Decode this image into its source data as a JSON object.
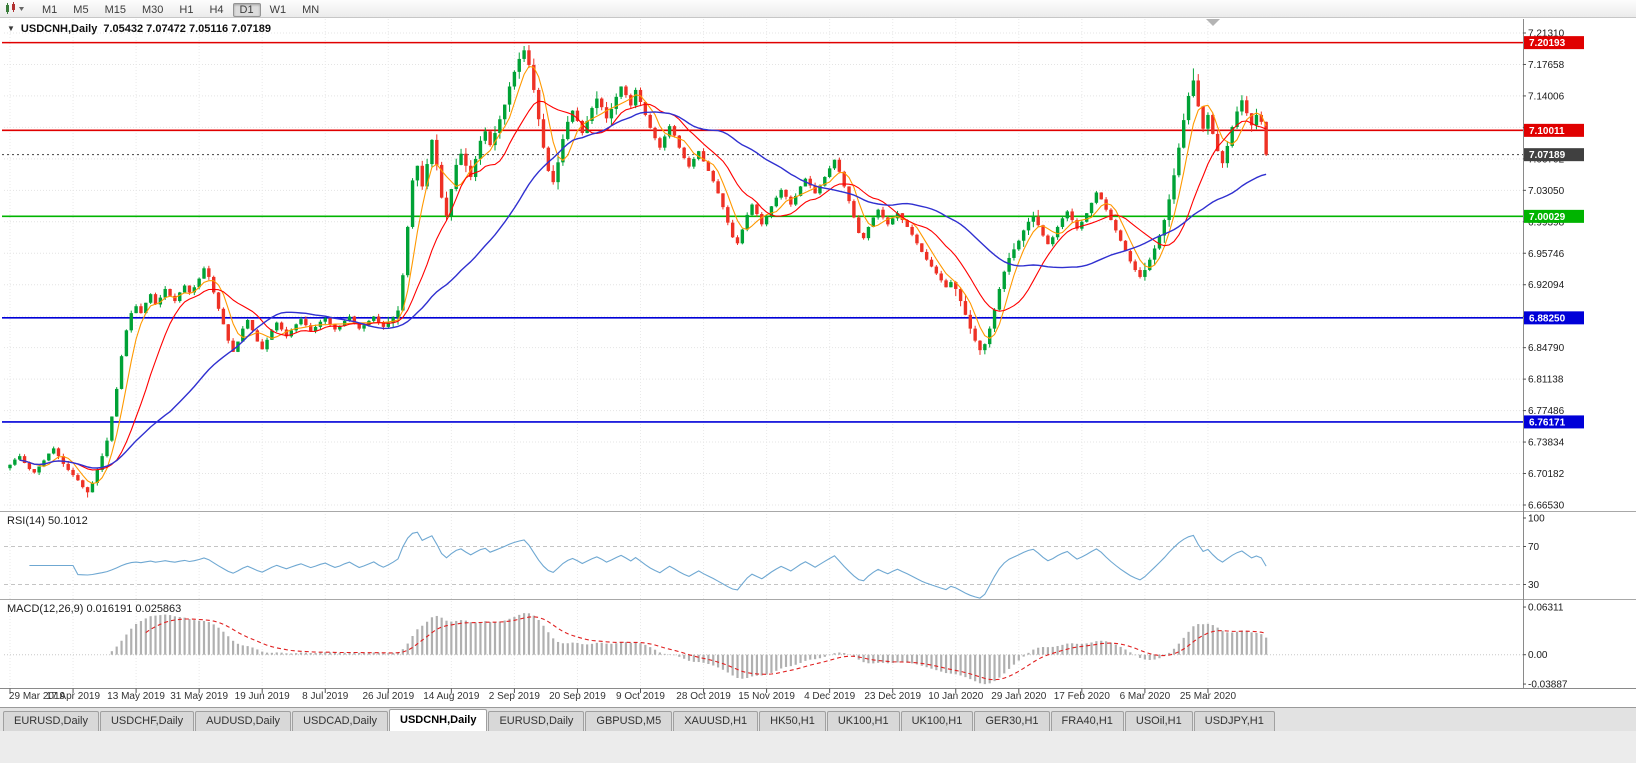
{
  "toolbar": {
    "periods": [
      "M1",
      "M5",
      "M15",
      "M30",
      "H1",
      "H4",
      "D1",
      "W1",
      "MN"
    ],
    "active_period": "D1"
  },
  "header": {
    "title": "USDCNH,Daily",
    "ohlc": "7.05432 7.07472 7.05116 7.07189"
  },
  "chart_data": {
    "type": "candlestick",
    "symbol": "USDCNH",
    "timeframe": "Daily",
    "current_bar": {
      "open": 7.05432,
      "high": 7.07472,
      "low": 7.05116,
      "close": 7.07189
    },
    "x_labels": [
      "29 Mar 2019",
      "17 Apr 2019",
      "13 May 2019",
      "31 May 2019",
      "19 Jun 2019",
      "8 Jul 2019",
      "26 Jul 2019",
      "14 Aug 2019",
      "2 Sep 2019",
      "20 Sep 2019",
      "9 Oct 2019",
      "28 Oct 2019",
      "15 Nov 2019",
      "4 Dec 2019",
      "23 Dec 2019",
      "10 Jan 2020",
      "29 Jan 2020",
      "17 Feb 2020",
      "6 Mar 2020",
      "25 Mar 2020"
    ],
    "bars_per_label": 13,
    "y_axis_ticks": [
      "7.21310",
      "7.17658",
      "7.14006",
      "7.10354",
      "7.06702",
      "7.03050",
      "6.99398",
      "6.95746",
      "6.92094",
      "6.88442",
      "6.84790",
      "6.81138",
      "6.77486",
      "6.73834",
      "6.70182",
      "6.66530"
    ],
    "horizontal_lines": [
      {
        "price": 7.20193,
        "label": "7.20193",
        "color": "#e00000",
        "style": "solid"
      },
      {
        "price": 7.10011,
        "label": "7.10011",
        "color": "#e00000",
        "style": "solid"
      },
      {
        "price": 7.07189,
        "label": "7.07189",
        "color": "#404040",
        "style": "dotted"
      },
      {
        "price": 7.00029,
        "label": "7.00029",
        "color": "#00b400",
        "style": "solid"
      },
      {
        "price": 6.8825,
        "label": "6.88250",
        "color": "#0000d8",
        "style": "solid"
      },
      {
        "price": 6.76171,
        "label": "6.76171",
        "color": "#0000d8",
        "style": "solid"
      }
    ],
    "candle_colors": {
      "up": "#00a236",
      "down": "#ee3125"
    },
    "moving_averages": [
      {
        "name": "fast",
        "period": 5,
        "color": "#ff9900"
      },
      {
        "name": "medium",
        "period": 13,
        "color": "#ff0000"
      },
      {
        "name": "slow",
        "period": 34,
        "color": "#3030d0"
      }
    ],
    "closes": [
      6.712,
      6.718,
      6.722,
      6.714,
      6.707,
      6.703,
      6.71,
      6.717,
      6.725,
      6.731,
      6.722,
      6.713,
      6.706,
      6.7,
      6.694,
      6.686,
      6.68,
      6.691,
      6.706,
      6.722,
      6.74,
      6.768,
      6.8,
      6.838,
      6.868,
      6.888,
      6.896,
      6.888,
      6.9,
      6.91,
      6.898,
      6.906,
      6.916,
      6.908,
      6.902,
      6.912,
      6.92,
      6.912,
      6.918,
      6.928,
      6.94,
      6.93,
      6.912,
      6.893,
      6.875,
      6.856,
      6.843,
      6.855,
      6.87,
      6.88,
      6.868,
      6.855,
      6.846,
      6.857,
      6.868,
      6.877,
      6.869,
      6.861,
      6.868,
      6.875,
      6.881,
      6.874,
      6.867,
      6.872,
      6.878,
      6.882,
      6.875,
      6.869,
      6.873,
      6.879,
      6.884,
      6.877,
      6.87,
      6.874,
      6.879,
      6.884,
      6.877,
      6.872,
      6.877,
      6.883,
      6.891,
      6.932,
      6.988,
      7.042,
      7.059,
      7.035,
      7.061,
      7.089,
      7.06,
      7.022,
      7.001,
      7.032,
      7.06,
      7.073,
      7.059,
      7.046,
      7.067,
      7.088,
      7.099,
      7.083,
      7.097,
      7.113,
      7.13,
      7.151,
      7.168,
      7.183,
      7.193,
      7.176,
      7.147,
      7.113,
      7.08,
      7.053,
      7.04,
      7.063,
      7.09,
      7.11,
      7.123,
      7.111,
      7.097,
      7.111,
      7.126,
      7.137,
      7.127,
      7.114,
      7.125,
      7.139,
      7.151,
      7.141,
      7.129,
      7.147,
      7.133,
      7.118,
      7.103,
      7.091,
      7.08,
      7.093,
      7.105,
      7.094,
      7.08,
      7.068,
      7.058,
      7.067,
      7.076,
      7.064,
      7.053,
      7.041,
      7.027,
      7.011,
      6.993,
      6.976,
      6.969,
      6.985,
      7.002,
      7.014,
      7.003,
      6.991,
      7.001,
      7.012,
      7.022,
      7.031,
      7.023,
      7.014,
      7.024,
      7.035,
      7.044,
      7.036,
      7.027,
      7.036,
      7.046,
      7.056,
      7.066,
      7.052,
      7.035,
      7.018,
      6.999,
      6.981,
      6.975,
      6.988,
      6.999,
      7.008,
      6.999,
      6.991,
      6.998,
      7.004,
      6.996,
      6.988,
      6.979,
      6.969,
      6.959,
      6.95,
      6.942,
      6.934,
      6.926,
      6.918,
      6.924,
      6.916,
      6.902,
      6.886,
      6.87,
      6.856,
      6.845,
      6.852,
      6.87,
      6.892,
      6.916,
      6.936,
      6.952,
      6.962,
      6.972,
      6.984,
      6.994,
      7.0,
      6.99,
      6.978,
      6.968,
      6.976,
      6.988,
      6.998,
      7.006,
      6.996,
      6.986,
      6.994,
      7.004,
      7.016,
      7.028,
      7.02,
      7.008,
      6.996,
      6.984,
      6.972,
      6.96,
      6.948,
      6.938,
      6.93,
      6.938,
      6.95,
      6.963,
      6.978,
      6.996,
      7.02,
      7.048,
      7.08,
      7.112,
      7.14,
      7.158,
      7.128,
      7.102,
      7.118,
      7.096,
      7.076,
      7.062,
      7.082,
      7.104,
      7.122,
      7.135,
      7.12,
      7.106,
      7.118,
      7.11,
      7.072
    ],
    "indicators": [
      {
        "type": "RSI",
        "label": "RSI(14) 50.1012",
        "period": 14,
        "value": "50.1012",
        "levels": [
          70,
          30
        ],
        "axis_ticks": [
          "100",
          "70",
          "30"
        ],
        "line_color": "#6fa8d2"
      },
      {
        "type": "MACD",
        "label": "MACD(12,26,9) 0.016191 0.025863",
        "fast": 12,
        "slow": 26,
        "signal": 9,
        "values": [
          "0.016191",
          "0.025863"
        ],
        "axis_ticks": [
          "0.06311",
          "0.00",
          "-0.03887"
        ],
        "histogram_color": "#b0b0b0",
        "signal_color": "#e02020"
      }
    ]
  },
  "tabs": {
    "items": [
      "EURUSD,Daily",
      "USDCHF,Daily",
      "AUDUSD,Daily",
      "USDCAD,Daily",
      "USDCNH,Daily",
      "EURUSD,Daily",
      "GBPUSD,M5",
      "XAUUSD,H1",
      "HK50,H1",
      "UK100,H1",
      "UK100,H1",
      "GER30,H1",
      "FRA40,H1",
      "USOil,H1",
      "USDJPY,H1"
    ],
    "active_index": 4
  }
}
